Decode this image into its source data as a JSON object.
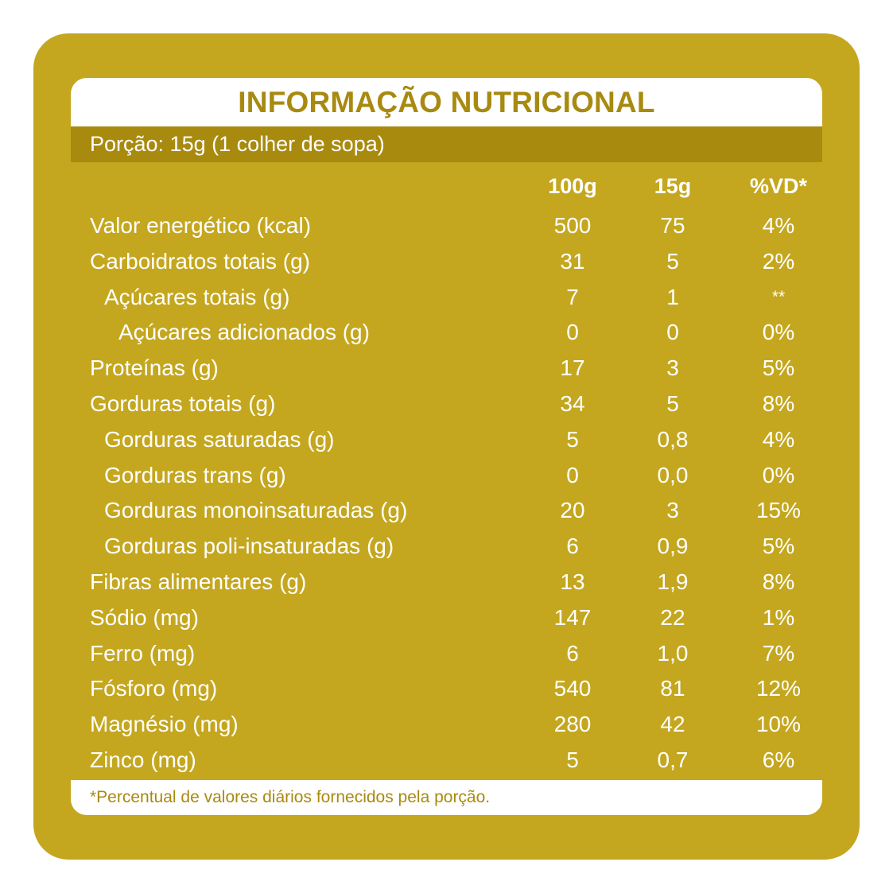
{
  "title": "INFORMAÇÃO NUTRICIONAL",
  "portion": "Porção: 15g (1 colher de sopa)",
  "columns": {
    "per_100g": "100g",
    "per_portion": "15g",
    "daily_value": "%VD*"
  },
  "rows": [
    {
      "name": "Valor energético (kcal)",
      "v100": "500",
      "v15": "75",
      "vd": "4%",
      "indent": 0
    },
    {
      "name": "Carboidratos totais (g)",
      "v100": "31",
      "v15": "5",
      "vd": "2%",
      "indent": 0
    },
    {
      "name": "Açúcares totais (g)",
      "v100": "7",
      "v15": "1",
      "vd": "**",
      "indent": 1
    },
    {
      "name": "Açúcares adicionados (g)",
      "v100": "0",
      "v15": "0",
      "vd": "0%",
      "indent": 2
    },
    {
      "name": "Proteínas (g)",
      "v100": "17",
      "v15": "3",
      "vd": "5%",
      "indent": 0
    },
    {
      "name": "Gorduras totais (g)",
      "v100": "34",
      "v15": "5",
      "vd": "8%",
      "indent": 0
    },
    {
      "name": "Gorduras saturadas (g)",
      "v100": "5",
      "v15": "0,8",
      "vd": "4%",
      "indent": 1
    },
    {
      "name": "Gorduras trans (g)",
      "v100": "0",
      "v15": "0,0",
      "vd": "0%",
      "indent": 1
    },
    {
      "name": "Gorduras monoinsaturadas (g)",
      "v100": "20",
      "v15": "3",
      "vd": "15%",
      "indent": 1
    },
    {
      "name": "Gorduras poli-insaturadas (g)",
      "v100": "6",
      "v15": "0,9",
      "vd": "5%",
      "indent": 1
    },
    {
      "name": "Fibras alimentares (g)",
      "v100": "13",
      "v15": "1,9",
      "vd": "8%",
      "indent": 0
    },
    {
      "name": "Sódio (mg)",
      "v100": "147",
      "v15": "22",
      "vd": "1%",
      "indent": 0
    },
    {
      "name": "Ferro (mg)",
      "v100": "6",
      "v15": "1,0",
      "vd": "7%",
      "indent": 0
    },
    {
      "name": "Fósforo (mg)",
      "v100": "540",
      "v15": "81",
      "vd": "12%",
      "indent": 0
    },
    {
      "name": "Magnésio (mg)",
      "v100": "280",
      "v15": "42",
      "vd": "10%",
      "indent": 0
    },
    {
      "name": "Zinco (mg)",
      "v100": "5",
      "v15": "0,7",
      "vd": "6%",
      "indent": 0
    }
  ],
  "footnote": "*Percentual de valores diários fornecidos pela porção.",
  "colors": {
    "gold": "#c4a71f",
    "dark_gold": "#a88a0f",
    "text_on_gold": "#ffffff"
  }
}
